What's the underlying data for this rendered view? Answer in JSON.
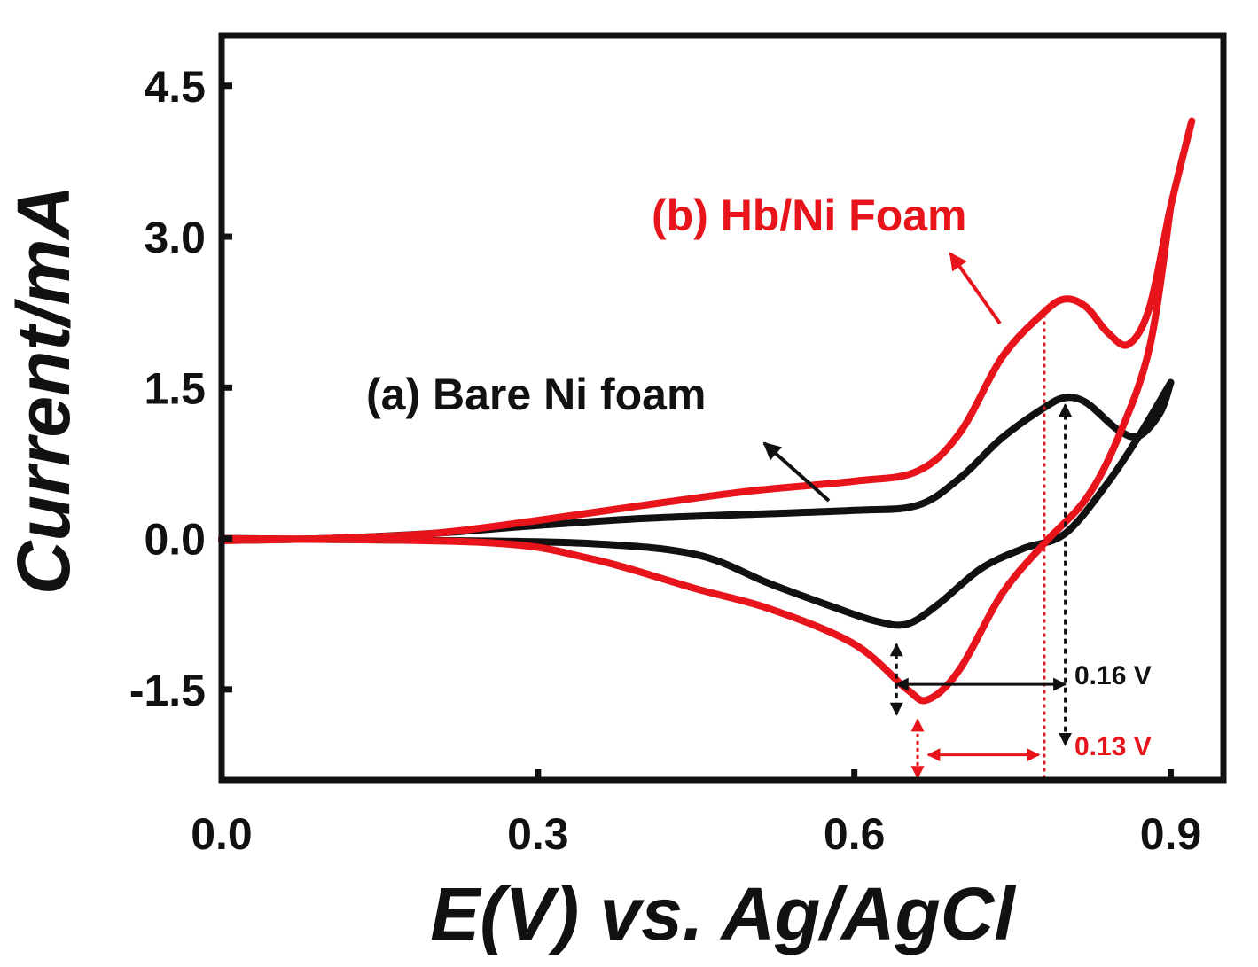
{
  "chart_data": {
    "type": "line",
    "title": "",
    "xlabel": "E(V) vs. Ag/AgCl",
    "ylabel": "Current/mA",
    "xlim": [
      0.0,
      0.95
    ],
    "ylim": [
      -2.4,
      5.0
    ],
    "xticks": [
      0.0,
      0.3,
      0.6,
      0.9
    ],
    "xtick_labels": [
      "0.0",
      "0.3",
      "0.6",
      "0.9"
    ],
    "yticks": [
      -1.5,
      0.0,
      1.5,
      3.0,
      4.5
    ],
    "ytick_labels": [
      "-1.5",
      "0.0",
      "1.5",
      "3.0",
      "4.5"
    ],
    "grid": false,
    "series": [
      {
        "name": "(a) Bare Ni foam",
        "color": "#111111",
        "forward": [
          [
            0.0,
            -0.02
          ],
          [
            0.1,
            0.0
          ],
          [
            0.2,
            0.05
          ],
          [
            0.3,
            0.13
          ],
          [
            0.4,
            0.2
          ],
          [
            0.5,
            0.24
          ],
          [
            0.6,
            0.28
          ],
          [
            0.66,
            0.33
          ],
          [
            0.7,
            0.6
          ],
          [
            0.74,
            1.0
          ],
          [
            0.78,
            1.3
          ],
          [
            0.8,
            1.4
          ],
          [
            0.82,
            1.35
          ],
          [
            0.85,
            1.08
          ],
          [
            0.87,
            1.02
          ],
          [
            0.89,
            1.25
          ],
          [
            0.9,
            1.55
          ]
        ],
        "reverse": [
          [
            0.9,
            1.55
          ],
          [
            0.87,
            1.02
          ],
          [
            0.84,
            0.55
          ],
          [
            0.8,
            0.05
          ],
          [
            0.76,
            -0.1
          ],
          [
            0.72,
            -0.3
          ],
          [
            0.68,
            -0.65
          ],
          [
            0.65,
            -0.85
          ],
          [
            0.62,
            -0.82
          ],
          [
            0.58,
            -0.68
          ],
          [
            0.52,
            -0.45
          ],
          [
            0.45,
            -0.16
          ],
          [
            0.35,
            -0.05
          ],
          [
            0.2,
            -0.02
          ],
          [
            0.0,
            0.0
          ]
        ]
      },
      {
        "name": "(b) Hb/Ni Foam",
        "color": "#e8141b",
        "forward": [
          [
            0.0,
            -0.02
          ],
          [
            0.1,
            0.0
          ],
          [
            0.2,
            0.05
          ],
          [
            0.3,
            0.18
          ],
          [
            0.4,
            0.33
          ],
          [
            0.5,
            0.47
          ],
          [
            0.6,
            0.57
          ],
          [
            0.66,
            0.67
          ],
          [
            0.7,
            1.05
          ],
          [
            0.74,
            1.8
          ],
          [
            0.78,
            2.25
          ],
          [
            0.8,
            2.38
          ],
          [
            0.82,
            2.3
          ],
          [
            0.84,
            2.05
          ],
          [
            0.86,
            1.93
          ],
          [
            0.88,
            2.3
          ],
          [
            0.9,
            3.3
          ],
          [
            0.92,
            4.15
          ]
        ],
        "reverse": [
          [
            0.9,
            3.3
          ],
          [
            0.88,
            1.9
          ],
          [
            0.85,
            1.0
          ],
          [
            0.82,
            0.4
          ],
          [
            0.78,
            -0.05
          ],
          [
            0.74,
            -0.55
          ],
          [
            0.7,
            -1.3
          ],
          [
            0.67,
            -1.6
          ],
          [
            0.65,
            -1.5
          ],
          [
            0.6,
            -1.05
          ],
          [
            0.52,
            -0.7
          ],
          [
            0.45,
            -0.5
          ],
          [
            0.35,
            -0.2
          ],
          [
            0.25,
            -0.04
          ],
          [
            0.0,
            0.0
          ]
        ]
      }
    ],
    "annotations": [
      {
        "text": "(a) Bare Ni foam",
        "color": "#111111"
      },
      {
        "text": "(b) Hb/Ni Foam",
        "color": "#e8141b"
      },
      {
        "text": "0.16 V",
        "color": "#111111",
        "x_from": 0.64,
        "x_to": 0.8,
        "y": -1.45
      },
      {
        "text": "0.13 V",
        "color": "#e8141b",
        "x_from": 0.67,
        "x_to": 0.78,
        "y": -2.15
      }
    ]
  }
}
